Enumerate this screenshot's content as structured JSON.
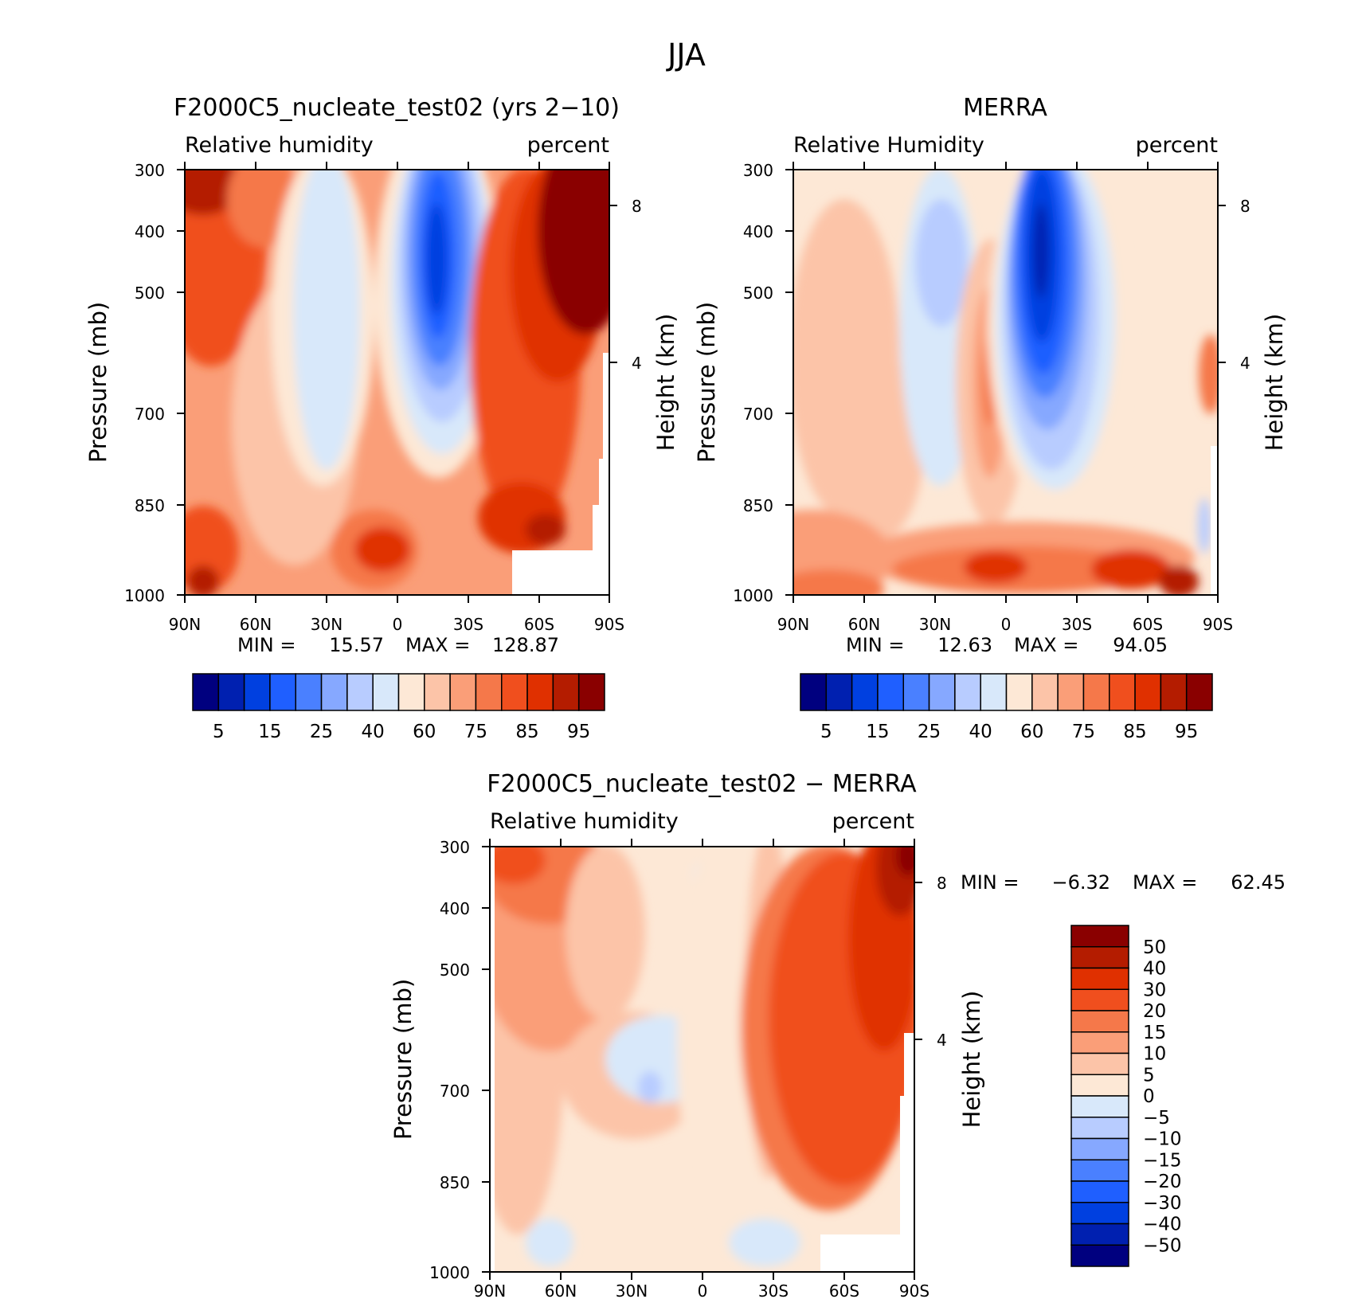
{
  "figure": {
    "title": "JJA"
  },
  "chart_data": [
    {
      "type": "heatmap",
      "title": "F2000C5_nucleate_test02 (yrs 2−10)",
      "left_label": "Relative humidity",
      "right_label": "percent",
      "ylabel": "Pressure (mb)",
      "ylabel2": "Height (km)",
      "x_ticks": [
        "90N",
        "60N",
        "30N",
        "0",
        "30S",
        "60S",
        "90S"
      ],
      "y_ticks": [
        "300",
        "400",
        "500",
        "700",
        "850",
        "1000"
      ],
      "y2_ticks": [
        "8",
        "4"
      ],
      "stats": {
        "min_label": "MIN =",
        "min": "15.57",
        "max_label": "MAX =",
        "max": "128.87"
      },
      "colorbar": {
        "orientation": "horizontal",
        "labels": [
          "5",
          "15",
          "25",
          "40",
          "60",
          "75",
          "85",
          "95"
        ],
        "colors": [
          "#00007f",
          "#0020b0",
          "#0040e0",
          "#1f5fff",
          "#4a80ff",
          "#86a8ff",
          "#b8ccff",
          "#d8e8fa",
          "#fde8d6",
          "#fcc4a8",
          "#fa9e78",
          "#f5784a",
          "#f04f1e",
          "#e03000",
          "#b41c00",
          "#8a0000"
        ]
      }
    },
    {
      "type": "heatmap",
      "title": "MERRA",
      "left_label": "Relative Humidity",
      "right_label": "percent",
      "ylabel": "Pressure (mb)",
      "ylabel2": "Height (km)",
      "x_ticks": [
        "90N",
        "60N",
        "30N",
        "0",
        "30S",
        "60S",
        "90S"
      ],
      "y_ticks": [
        "300",
        "400",
        "500",
        "700",
        "850",
        "1000"
      ],
      "y2_ticks": [
        "8",
        "4"
      ],
      "stats": {
        "min_label": "MIN =",
        "min": "12.63",
        "max_label": "MAX =",
        "max": "94.05"
      },
      "colorbar": {
        "orientation": "horizontal",
        "labels": [
          "5",
          "15",
          "25",
          "40",
          "60",
          "75",
          "85",
          "95"
        ],
        "colors": [
          "#00007f",
          "#0020b0",
          "#0040e0",
          "#1f5fff",
          "#4a80ff",
          "#86a8ff",
          "#b8ccff",
          "#d8e8fa",
          "#fde8d6",
          "#fcc4a8",
          "#fa9e78",
          "#f5784a",
          "#f04f1e",
          "#e03000",
          "#b41c00",
          "#8a0000"
        ]
      }
    },
    {
      "type": "heatmap",
      "title": "F2000C5_nucleate_test02 − MERRA",
      "left_label": "Relative humidity",
      "right_label": "percent",
      "ylabel": "Pressure (mb)",
      "ylabel2": "Height (km)",
      "x_ticks": [
        "90N",
        "60N",
        "30N",
        "0",
        "30S",
        "60S",
        "90S"
      ],
      "y_ticks": [
        "300",
        "400",
        "500",
        "700",
        "850",
        "1000"
      ],
      "y2_ticks": [
        "8",
        "4"
      ],
      "stats": {
        "min_label": "MIN =",
        "min": "−6.32",
        "max_label": "MAX =",
        "max": "62.45"
      },
      "colorbar": {
        "orientation": "vertical",
        "labels": [
          "50",
          "40",
          "30",
          "20",
          "15",
          "10",
          "5",
          "0",
          "−5",
          "−10",
          "−15",
          "−20",
          "−30",
          "−40",
          "−50"
        ],
        "colors": [
          "#8a0000",
          "#b41c00",
          "#e03000",
          "#f04f1e",
          "#f5784a",
          "#fa9e78",
          "#fcc4a8",
          "#fde8d6",
          "#d8e8fa",
          "#b8ccff",
          "#86a8ff",
          "#4a80ff",
          "#1f5fff",
          "#0040e0",
          "#0020b0",
          "#00007f"
        ]
      }
    }
  ]
}
